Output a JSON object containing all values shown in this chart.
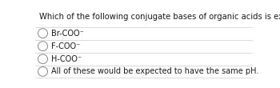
{
  "title": "Which of the following conjugate bases of organic acids is expected to have the lowest Kᵇ?",
  "options": [
    "Br-COO⁻",
    "F-COO⁻",
    "H-COO⁻",
    "All of these would be expected to have the same pH."
  ],
  "bg_color": "#ffffff",
  "text_color": "#1a1a1a",
  "line_color": "#cccccc",
  "circle_color": "#888888",
  "title_fontsize": 7.2,
  "option_fontsize": 7.0
}
